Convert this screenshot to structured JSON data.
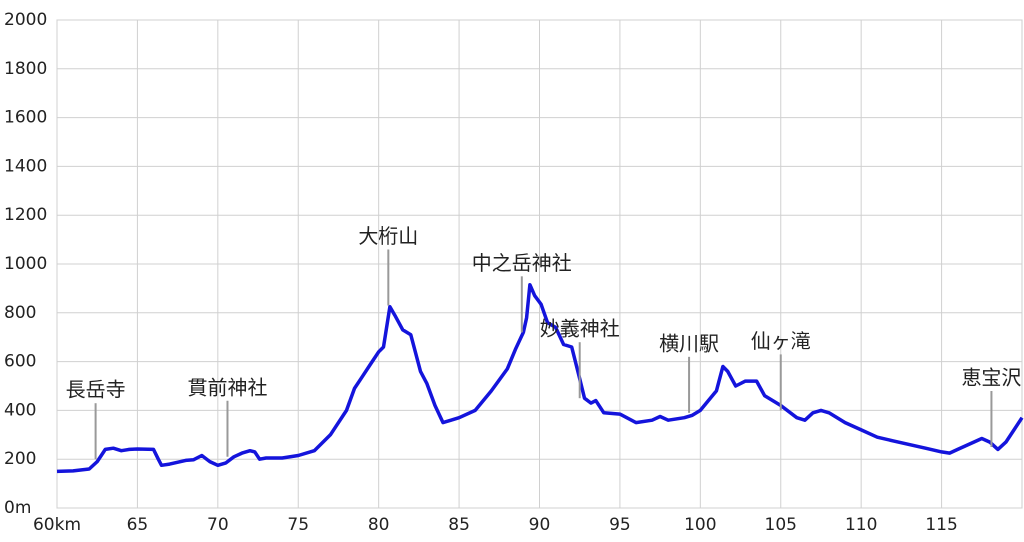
{
  "chart_data": {
    "type": "line",
    "x": [
      60,
      61,
      62,
      62.5,
      63,
      63.5,
      64,
      64.5,
      65,
      66,
      66.3,
      66.5,
      67,
      68,
      68.5,
      69,
      69.5,
      70,
      70.5,
      71,
      71.5,
      72,
      72.3,
      72.6,
      73,
      74,
      75,
      76,
      77,
      78,
      78.5,
      79,
      79.5,
      80,
      80.3,
      80.7,
      81,
      81.5,
      82,
      82.6,
      83,
      83.5,
      84,
      84.5,
      85,
      86,
      87,
      88,
      88.5,
      89,
      89.2,
      89.4,
      89.7,
      90.1,
      90.5,
      91,
      91.5,
      92,
      92.5,
      92.8,
      93.2,
      93.5,
      94,
      95,
      96,
      97,
      97.5,
      98,
      99,
      99.5,
      100,
      101,
      101.4,
      101.7,
      102.2,
      102.8,
      103.5,
      104,
      105,
      106,
      106.5,
      107,
      107.5,
      108,
      109,
      110,
      111,
      112,
      113,
      114,
      115,
      115.5,
      116,
      117,
      117.5,
      118,
      118.5,
      119,
      120
    ],
    "series": [
      {
        "color": "#1414dc",
        "values": [
          150,
          152,
          160,
          190,
          240,
          245,
          235,
          240,
          242,
          240,
          200,
          175,
          180,
          195,
          198,
          215,
          190,
          175,
          185,
          210,
          225,
          235,
          230,
          200,
          205,
          205,
          215,
          235,
          300,
          400,
          490,
          540,
          590,
          640,
          660,
          825,
          790,
          730,
          710,
          560,
          510,
          420,
          350,
          360,
          370,
          400,
          480,
          570,
          650,
          720,
          780,
          915,
          870,
          835,
          760,
          740,
          670,
          660,
          530,
          450,
          430,
          440,
          390,
          385,
          350,
          360,
          375,
          360,
          370,
          380,
          400,
          480,
          580,
          560,
          500,
          520,
          520,
          460,
          420,
          370,
          360,
          390,
          400,
          390,
          350,
          320,
          290,
          275,
          260,
          245,
          230,
          225,
          240,
          270,
          285,
          270,
          240,
          270,
          370
        ]
      }
    ],
    "xlim": [
      60,
      120
    ],
    "ylim": [
      0,
      2000
    ],
    "xticks": [
      {
        "value": 60,
        "label": "60km"
      },
      65,
      70,
      75,
      80,
      85,
      90,
      95,
      100,
      105,
      110,
      115
    ],
    "yticks": [
      {
        "value": 0,
        "label": "0m"
      },
      200,
      400,
      600,
      800,
      1000,
      1200,
      1400,
      1600,
      1800,
      2000
    ],
    "grid": true,
    "annotations": [
      {
        "text": "長岳寺",
        "x": 62.4,
        "y": 200
      },
      {
        "text": "貫前神社",
        "x": 70.6,
        "y": 210
      },
      {
        "text": "大桁山",
        "x": 80.6,
        "y": 830
      },
      {
        "text": "中之岳神社",
        "x": 88.9,
        "y": 720
      },
      {
        "text": "妙義神社",
        "x": 92.5,
        "y": 450
      },
      {
        "text": "横川駅",
        "x": 99.3,
        "y": 390
      },
      {
        "text": "仙ヶ滝",
        "x": 105,
        "y": 400
      },
      {
        "text": "恵宝沢",
        "x": 118.1,
        "y": 250
      }
    ]
  }
}
